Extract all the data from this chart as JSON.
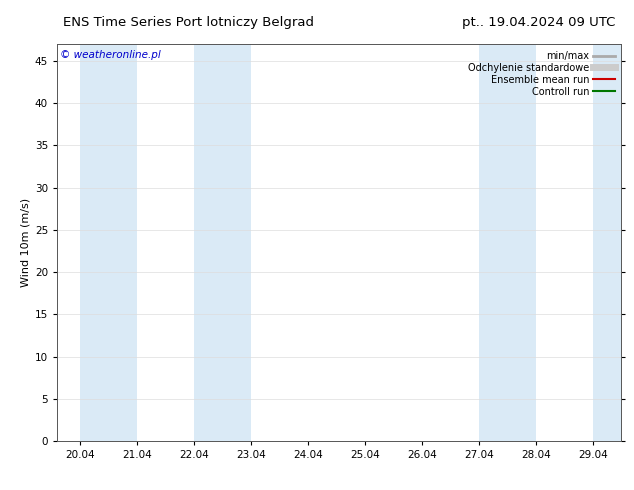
{
  "title_left": "ENS Time Series Port lotniczy Belgrad",
  "title_right": "pt.. 19.04.2024 09 UTC",
  "ylabel": "Wind 10m (m/s)",
  "watermark": "© weatheronline.pl",
  "watermark_color": "#0000cc",
  "ylim": [
    0,
    47
  ],
  "yticks": [
    0,
    5,
    10,
    15,
    20,
    25,
    30,
    35,
    40,
    45
  ],
  "x_labels": [
    "20.04",
    "21.04",
    "22.04",
    "23.04",
    "24.04",
    "25.04",
    "26.04",
    "27.04",
    "28.04",
    "29.04"
  ],
  "x_tick_positions": [
    20,
    21,
    22,
    23,
    24,
    25,
    26,
    27,
    28,
    29
  ],
  "x_min": 19.6,
  "x_max": 29.5,
  "shade_bands": [
    [
      20.0,
      21.0
    ],
    [
      22.0,
      23.0
    ],
    [
      27.0,
      28.0
    ],
    [
      29.0,
      29.5
    ]
  ],
  "shade_color": "#daeaf6",
  "legend_items": [
    {
      "label": "min/max",
      "color": "#aaaaaa",
      "lw": 2,
      "ls": "-"
    },
    {
      "label": "Odchylenie standardowe",
      "color": "#cccccc",
      "lw": 5,
      "ls": "-"
    },
    {
      "label": "Ensemble mean run",
      "color": "#cc0000",
      "lw": 1.5,
      "ls": "-"
    },
    {
      "label": "Controll run",
      "color": "#007700",
      "lw": 1.5,
      "ls": "-"
    }
  ],
  "bg_color": "#ffffff",
  "plot_bg_color": "#ffffff",
  "grid_color": "#dddddd",
  "title_fontsize": 9.5,
  "axis_label_fontsize": 8,
  "tick_fontsize": 7.5,
  "watermark_fontsize": 7.5,
  "legend_fontsize": 7
}
